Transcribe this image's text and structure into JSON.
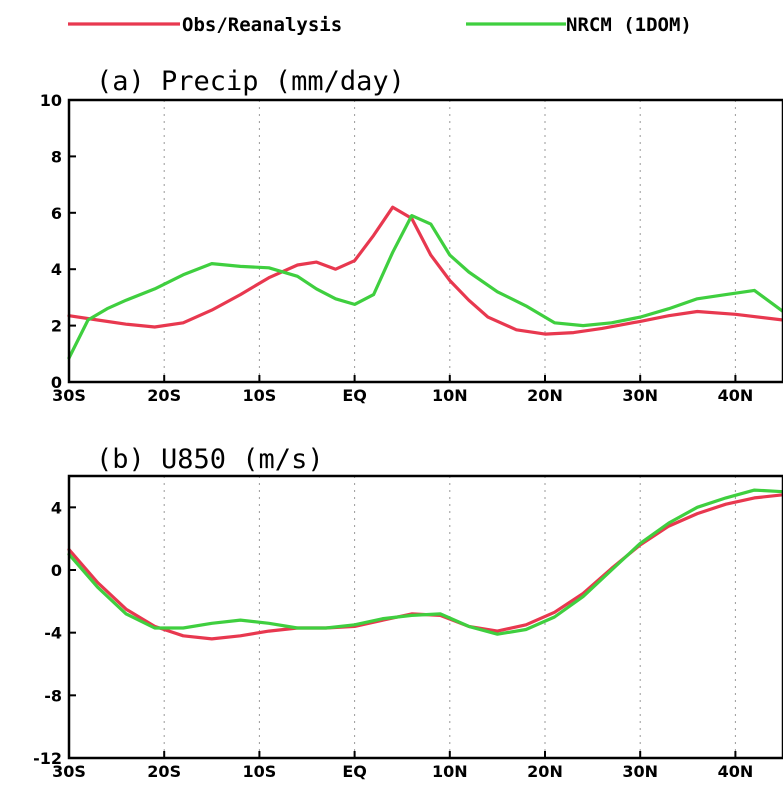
{
  "legend": [
    {
      "label": "Obs/Reanalysis",
      "color": "#e8384f"
    },
    {
      "label": "NRCM (1DOM)",
      "color": "#3fcf3f"
    }
  ],
  "chart_data": [
    {
      "type": "line",
      "title": "(a) Precip (mm/day)",
      "x_tick_values": [
        -30,
        -20,
        -10,
        0,
        10,
        20,
        30,
        40
      ],
      "x_tick_labels": [
        "30S",
        "20S",
        "10S",
        "EQ",
        "10N",
        "20N",
        "30N",
        "40N"
      ],
      "xlim": [
        -30,
        45
      ],
      "ylim": [
        0,
        10
      ],
      "y_ticks": [
        0,
        2,
        4,
        6,
        8,
        10
      ],
      "grid": "vertical dotted",
      "series": [
        {
          "name": "Obs/Reanalysis",
          "color": "#e8384f",
          "x": [
            -30,
            -27,
            -24,
            -21,
            -18,
            -15,
            -12,
            -9,
            -6,
            -4,
            -2,
            0,
            2,
            4,
            6,
            8,
            10,
            12,
            14,
            17,
            20,
            23,
            26,
            30,
            33,
            36,
            40,
            45
          ],
          "y": [
            2.35,
            2.2,
            2.05,
            1.95,
            2.1,
            2.55,
            3.1,
            3.7,
            4.15,
            4.25,
            4.0,
            4.3,
            5.2,
            6.2,
            5.8,
            4.5,
            3.6,
            2.9,
            2.3,
            1.85,
            1.7,
            1.75,
            1.9,
            2.15,
            2.35,
            2.5,
            2.4,
            2.2
          ]
        },
        {
          "name": "NRCM (1DOM)",
          "color": "#3fcf3f",
          "x": [
            -30,
            -28,
            -26,
            -24,
            -21,
            -18,
            -15,
            -12,
            -9,
            -6,
            -4,
            -2,
            0,
            2,
            4,
            6,
            8,
            10,
            12,
            15,
            18,
            21,
            24,
            27,
            30,
            33,
            36,
            39,
            42,
            45
          ],
          "y": [
            0.85,
            2.2,
            2.6,
            2.9,
            3.3,
            3.8,
            4.2,
            4.1,
            4.05,
            3.75,
            3.3,
            2.95,
            2.75,
            3.1,
            4.6,
            5.9,
            5.6,
            4.5,
            3.9,
            3.2,
            2.7,
            2.1,
            2.0,
            2.1,
            2.3,
            2.6,
            2.95,
            3.1,
            3.25,
            2.5
          ]
        }
      ]
    },
    {
      "type": "line",
      "title": "(b) U850 (m/s)",
      "x_tick_values": [
        -30,
        -20,
        -10,
        0,
        10,
        20,
        30,
        40
      ],
      "x_tick_labels": [
        "30S",
        "20S",
        "10S",
        "EQ",
        "10N",
        "20N",
        "30N",
        "40N"
      ],
      "xlim": [
        -30,
        45
      ],
      "ylim": [
        -12,
        6
      ],
      "y_ticks": [
        -12,
        -8,
        -4,
        0,
        4
      ],
      "grid": "vertical dotted",
      "series": [
        {
          "name": "Obs/Reanalysis",
          "color": "#e8384f",
          "x": [
            -30,
            -27,
            -24,
            -21,
            -18,
            -15,
            -12,
            -9,
            -6,
            -3,
            0,
            3,
            6,
            9,
            12,
            15,
            18,
            21,
            24,
            27,
            30,
            33,
            36,
            39,
            42,
            45
          ],
          "y": [
            1.3,
            -0.8,
            -2.5,
            -3.6,
            -4.2,
            -4.4,
            -4.2,
            -3.9,
            -3.7,
            -3.7,
            -3.6,
            -3.2,
            -2.8,
            -2.9,
            -3.6,
            -3.9,
            -3.5,
            -2.7,
            -1.5,
            0.1,
            1.6,
            2.8,
            3.6,
            4.2,
            4.6,
            4.8
          ]
        },
        {
          "name": "NRCM (1DOM)",
          "color": "#3fcf3f",
          "x": [
            -30,
            -27,
            -24,
            -21,
            -18,
            -15,
            -12,
            -9,
            -6,
            -3,
            0,
            3,
            6,
            9,
            12,
            15,
            18,
            21,
            24,
            27,
            30,
            33,
            36,
            39,
            42,
            45
          ],
          "y": [
            1.0,
            -1.1,
            -2.8,
            -3.7,
            -3.7,
            -3.4,
            -3.2,
            -3.4,
            -3.7,
            -3.7,
            -3.5,
            -3.1,
            -2.9,
            -2.8,
            -3.6,
            -4.1,
            -3.8,
            -3.0,
            -1.7,
            0.0,
            1.7,
            3.0,
            4.0,
            4.6,
            5.1,
            5.0
          ]
        }
      ]
    }
  ]
}
